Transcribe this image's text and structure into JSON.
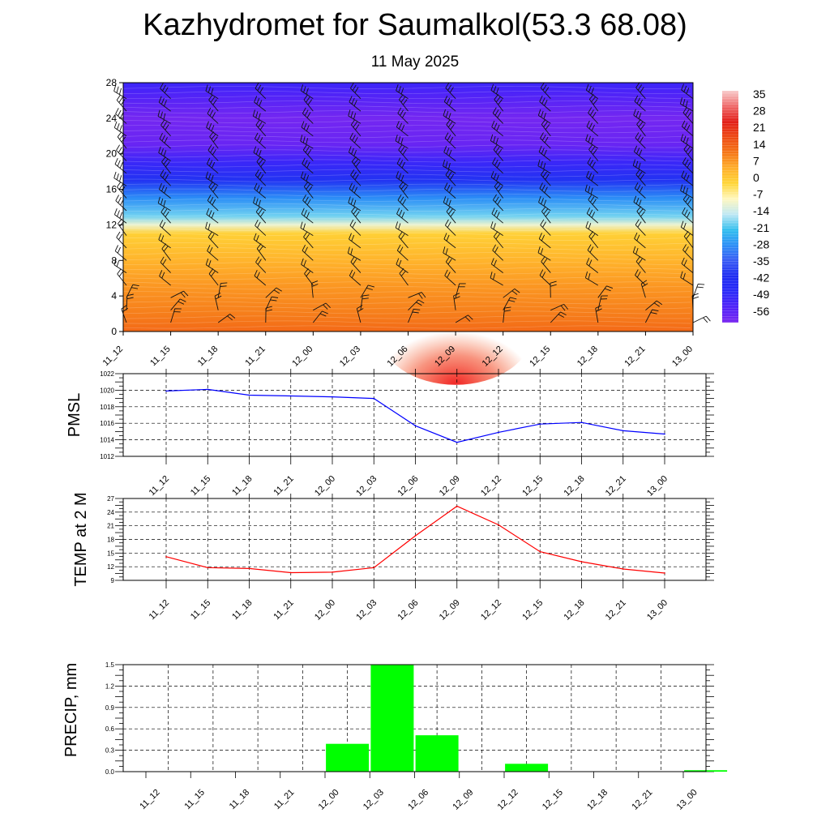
{
  "header": {
    "title": "Kazhydromet for Saumalkol(53.3 68.08)",
    "subtitle": "11 May 2025"
  },
  "time_labels": [
    "11_12",
    "11_15",
    "11_18",
    "11_21",
    "12_00",
    "12_03",
    "12_06",
    "12_09",
    "12_12",
    "12_15",
    "12_18",
    "12_21",
    "13_00"
  ],
  "chart_data": [
    {
      "type": "heatmap",
      "name": "cross-section",
      "y_ticks": [
        0,
        4,
        8,
        12,
        16,
        20,
        24,
        28
      ],
      "ylim": [
        0,
        28
      ],
      "x": [
        "11_12",
        "11_15",
        "11_18",
        "11_21",
        "12_00",
        "12_03",
        "12_06",
        "12_09",
        "12_12",
        "12_15",
        "12_18",
        "12_21",
        "13_00"
      ],
      "colorbar": {
        "labels": [
          "35",
          "28",
          "21",
          "14",
          "7",
          "0",
          "-7",
          "-14",
          "-21",
          "-28",
          "-35",
          "-42",
          "-49",
          "-56"
        ],
        "range": [
          -63,
          42
        ]
      },
      "temperature_profile": [
        {
          "level": 0,
          "value": 16
        },
        {
          "level": 2,
          "value": 13
        },
        {
          "level": 5,
          "value": 10
        },
        {
          "level": 8,
          "value": 6
        },
        {
          "level": 11,
          "value": 1
        },
        {
          "level": 12,
          "value": -9
        },
        {
          "level": 13,
          "value": -18
        },
        {
          "level": 15,
          "value": -28
        },
        {
          "level": 17,
          "value": -41
        },
        {
          "level": 19,
          "value": -52
        },
        {
          "level": 21,
          "value": -60
        },
        {
          "level": 24,
          "value": -62
        },
        {
          "level": 27,
          "value": -55
        },
        {
          "level": 28,
          "value": -52
        }
      ],
      "surface_warm_anomaly": {
        "center_time": "12_09",
        "peak": 25
      },
      "wind_barbs": true,
      "grid": false
    },
    {
      "type": "line",
      "ylabel": "PMSL",
      "x": [
        "11_12",
        "11_15",
        "11_18",
        "11_21",
        "12_00",
        "12_03",
        "12_06",
        "12_09",
        "12_12",
        "12_15",
        "12_18",
        "12_21",
        "13_00"
      ],
      "series": [
        {
          "values": [
            1019.9,
            1020.1,
            1019.4,
            1019.3,
            1019.2,
            1019.0,
            1015.7,
            1013.7,
            1014.9,
            1015.9,
            1016.1,
            1015.1,
            1014.7
          ]
        }
      ],
      "ylim": [
        1012,
        1022
      ],
      "y_ticks": [
        "1012",
        "1014",
        "1016",
        "1018",
        "1020",
        "1022"
      ],
      "color": "#0000ff",
      "grid": true
    },
    {
      "type": "line",
      "ylabel": "TEMP at 2 M",
      "x": [
        "11_12",
        "11_15",
        "11_18",
        "11_21",
        "12_00",
        "12_03",
        "12_06",
        "12_09",
        "12_12",
        "12_15",
        "12_18",
        "12_21",
        "13_00"
      ],
      "series": [
        {
          "values": [
            14.2,
            11.8,
            11.6,
            10.7,
            10.8,
            11.8,
            18.8,
            25.3,
            21.2,
            15.3,
            13.1,
            11.5,
            10.6
          ]
        }
      ],
      "ylim": [
        9,
        27
      ],
      "y_ticks": [
        "9",
        "12",
        "15",
        "18",
        "21",
        "24",
        "27"
      ],
      "color": "#ff0000",
      "grid": true
    },
    {
      "type": "bar",
      "ylabel": "PRECIP, mm",
      "categories": [
        "11_12",
        "11_15",
        "11_18",
        "11_21",
        "12_00",
        "12_03",
        "12_06",
        "12_09",
        "12_12",
        "12_15",
        "12_18",
        "12_21",
        "13_00"
      ],
      "values": [
        0,
        0,
        0,
        0,
        0.39,
        1.5,
        0.51,
        0,
        0.11,
        0,
        0,
        0,
        0.02
      ],
      "ylim": [
        0,
        1.5
      ],
      "y_ticks": [
        "0.0",
        "0.3",
        "0.6",
        "0.9",
        "1.2",
        "1.5"
      ],
      "color": "#00ff00",
      "grid": true
    }
  ]
}
